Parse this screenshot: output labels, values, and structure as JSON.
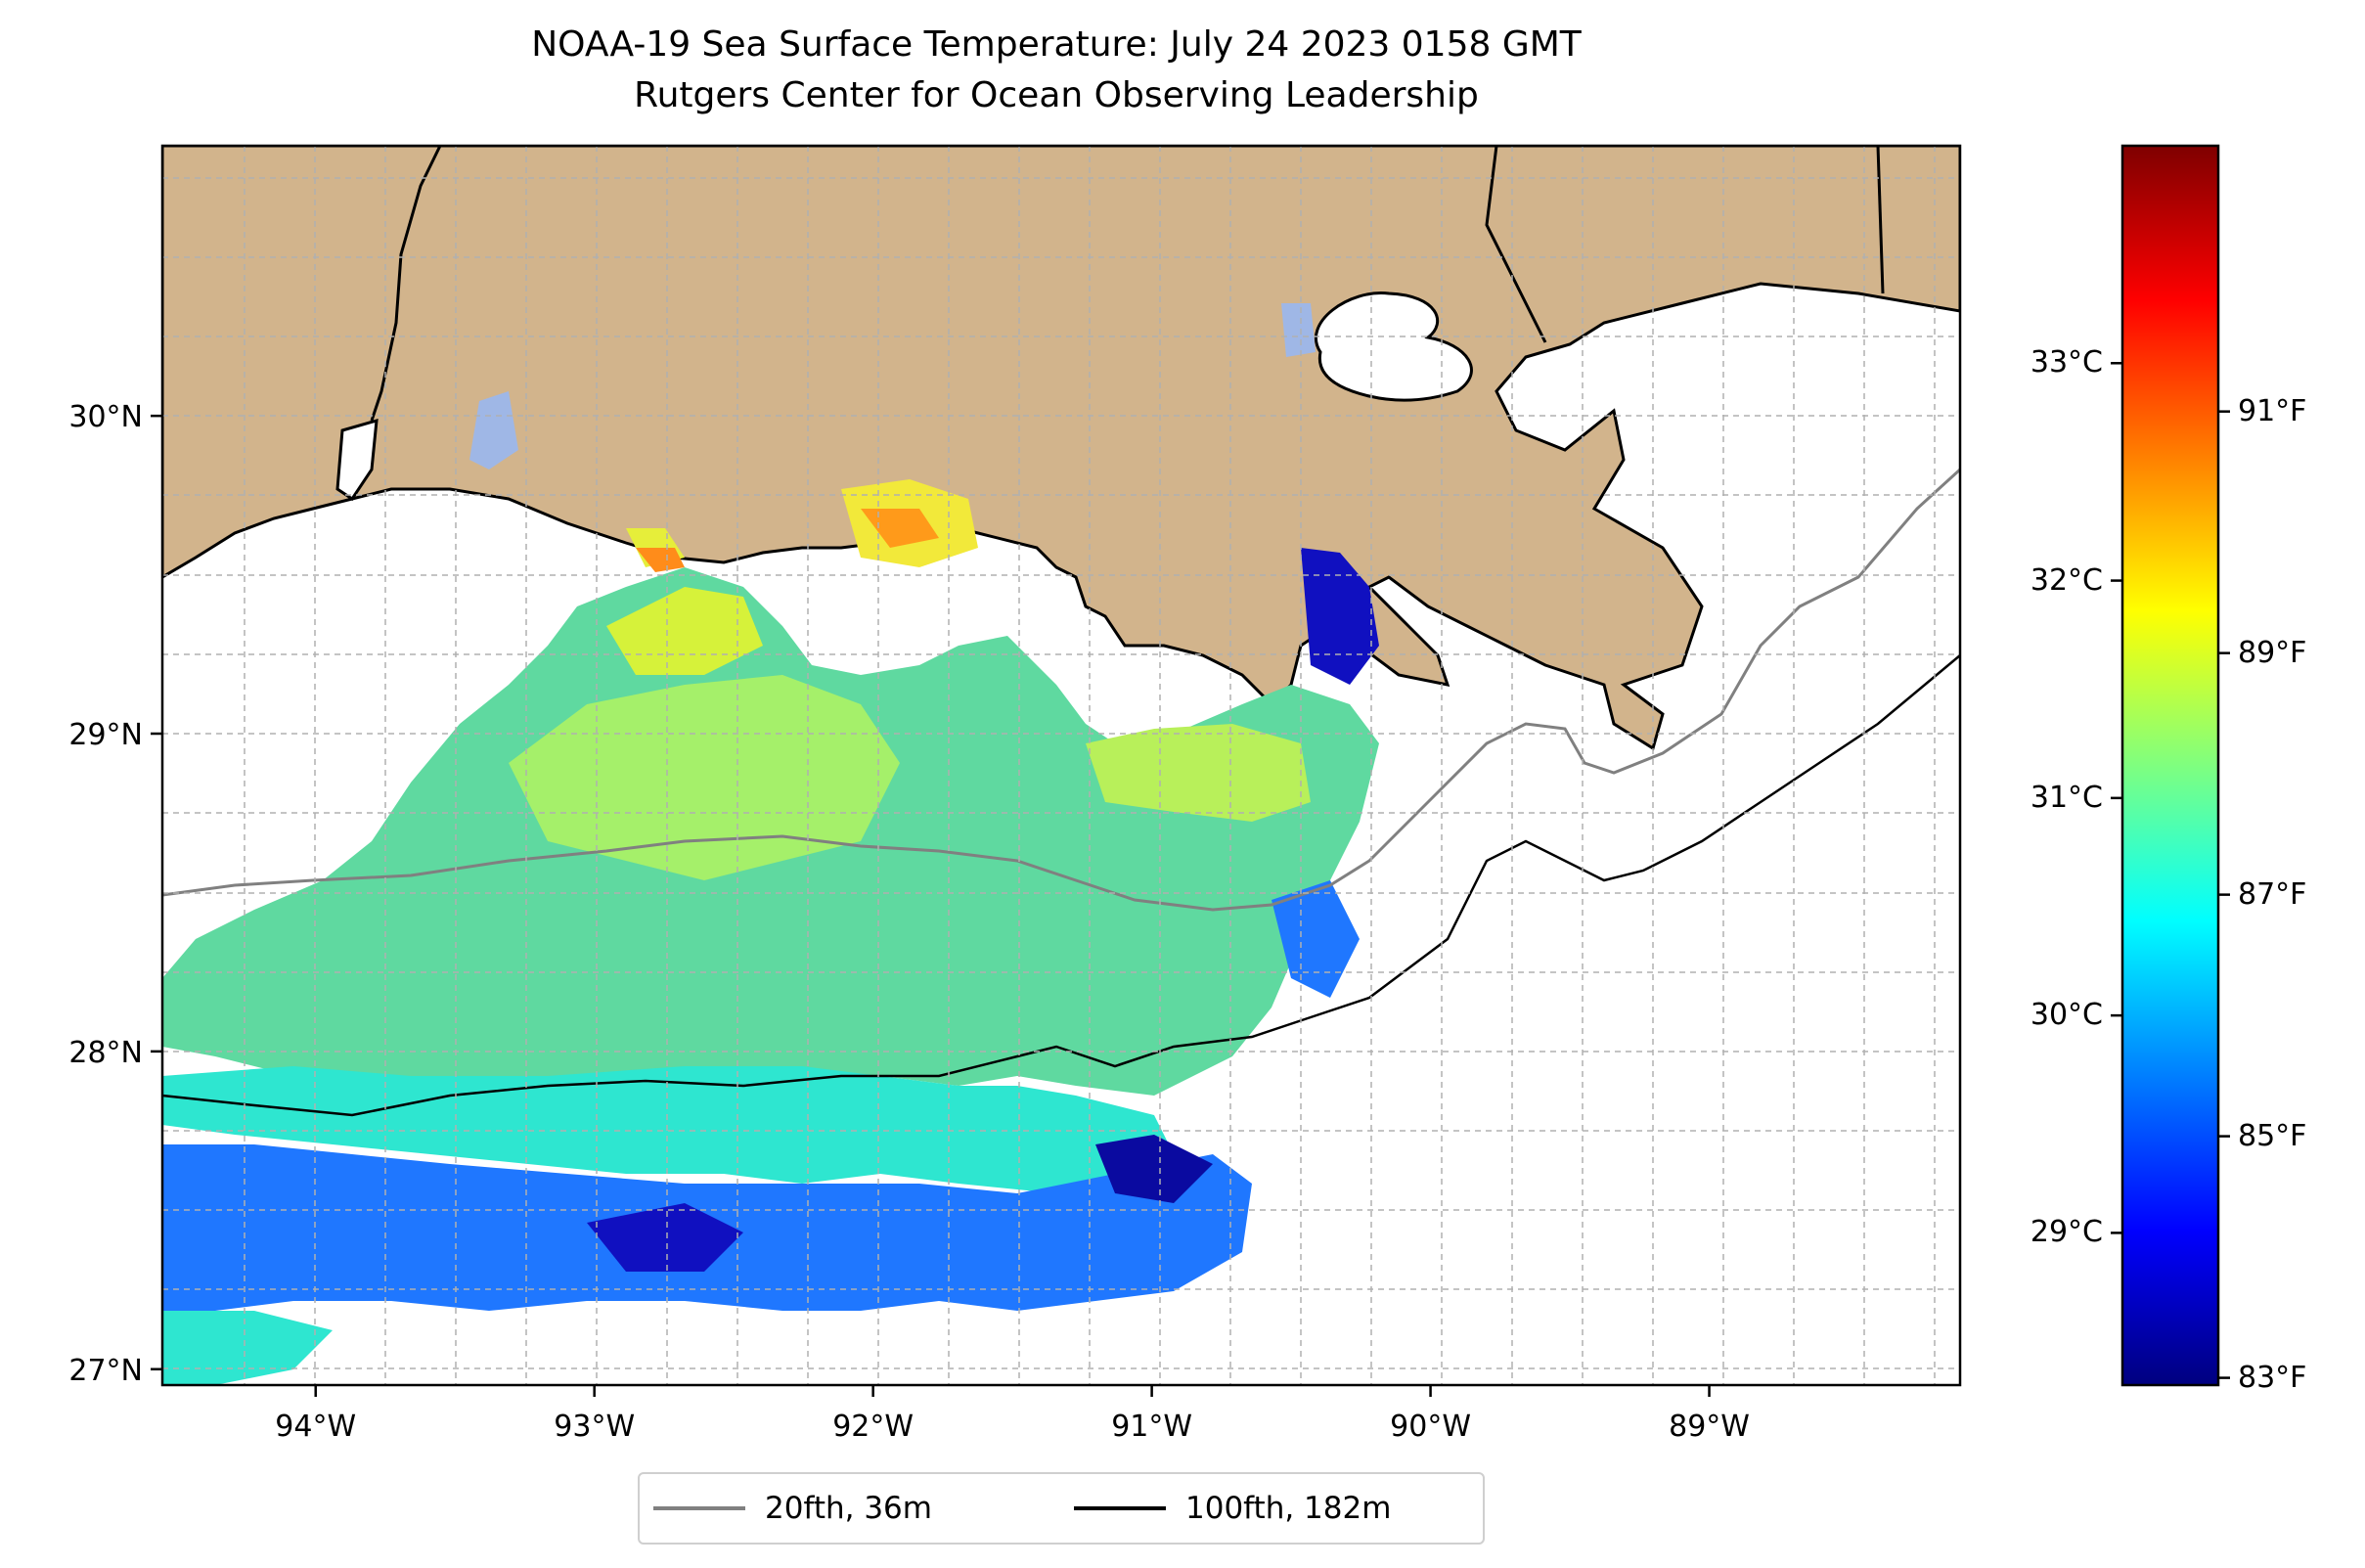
{
  "title": {
    "line1": "NOAA-19 Sea Surface Temperature: July 24 2023 0158 GMT",
    "line2": "Rutgers Center for Ocean Observing Leadership"
  },
  "map": {
    "region": "Northern Gulf of Mexico, Louisiana coast",
    "lon_range": [
      -94.55,
      -88.1
    ],
    "lat_range": [
      26.95,
      30.85
    ],
    "lon_ticks": [
      {
        "value": -94,
        "label": "94°W"
      },
      {
        "value": -93,
        "label": "93°W"
      },
      {
        "value": -92,
        "label": "92°W"
      },
      {
        "value": -91,
        "label": "91°W"
      },
      {
        "value": -90,
        "label": "90°W"
      },
      {
        "value": -89,
        "label": "89°W"
      }
    ],
    "lat_ticks": [
      {
        "value": 30,
        "label": "30°N"
      },
      {
        "value": 29,
        "label": "29°N"
      },
      {
        "value": 28,
        "label": "28°N"
      },
      {
        "value": 27,
        "label": "27°N"
      }
    ],
    "gridlines": true,
    "land_color": "#d2b48c",
    "ocean_nodata_color": "#ffffff",
    "legend_placement": "bottom-center, below map"
  },
  "colorbar": {
    "colormap": "jet",
    "celsius_range": [
      28.3,
      34.0
    ],
    "celsius_ticks": [
      "29°C",
      "30°C",
      "31°C",
      "32°C",
      "33°C"
    ],
    "fahrenheit_ticks": [
      "83°F",
      "85°F",
      "87°F",
      "89°F",
      "91°F"
    ],
    "colors": [
      "#00007f",
      "#0000ff",
      "#007fff",
      "#00ffff",
      "#7fff7f",
      "#ffff00",
      "#ff7f00",
      "#ff0000",
      "#7f0000"
    ]
  },
  "legend": {
    "items": [
      {
        "label": "20fth, 36m",
        "color": "#808080"
      },
      {
        "label": "100fth, 182m",
        "color": "#000000"
      }
    ]
  }
}
